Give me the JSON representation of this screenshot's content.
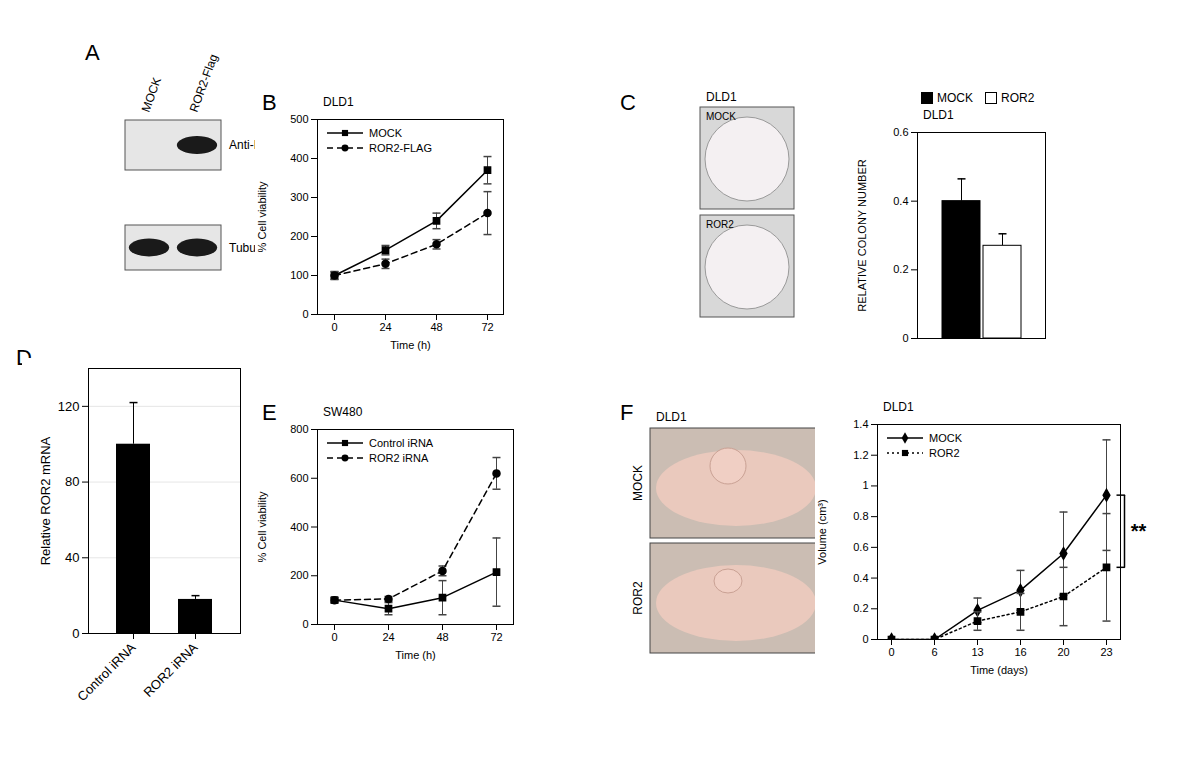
{
  "chart_data": [
    {
      "panel": "B",
      "type": "line",
      "title": "DLD1",
      "xlabel": "Time (h)",
      "ylabel": "% Cell viability",
      "categories": [
        "0",
        "24",
        "48",
        "72"
      ],
      "series": [
        {
          "name": "MOCK",
          "color": "#000000",
          "marker": "square",
          "line_style": "solid",
          "values": [
            100,
            165,
            240,
            370
          ],
          "errors": [
            10,
            12,
            20,
            35
          ]
        },
        {
          "name": "ROR2-FLAG",
          "color": "#000000",
          "marker": "circle",
          "line_style": "dashed",
          "values": [
            100,
            130,
            180,
            260
          ],
          "errors": [
            10,
            12,
            12,
            55
          ]
        }
      ],
      "ylim": [
        0,
        500
      ],
      "yticks": [
        0,
        100,
        200,
        300,
        400,
        500
      ],
      "legend": "top-left"
    },
    {
      "panel": "C",
      "type": "bar",
      "title": "DLD1",
      "ylabel": "RELATIVE COLONY NUMBER",
      "photos": {
        "title": "DLD1",
        "labels": [
          "MOCK",
          "ROR2"
        ]
      },
      "categories": [
        null
      ],
      "series": [
        {
          "name": "MOCK",
          "color": "#000000",
          "values": [
            0.4
          ],
          "errors": [
            0.065
          ]
        },
        {
          "name": "ROR2",
          "color": "#ffffff",
          "values": [
            0.27
          ],
          "errors": [
            0.035
          ]
        }
      ],
      "ylim": [
        0,
        0.6
      ],
      "yticks": [
        0,
        0.2,
        0.4,
        0.6
      ],
      "legend": "top",
      "tick_labels": "y"
    },
    {
      "panel": "D",
      "type": "bar",
      "ylabel": "Relative ROR2 mRNA",
      "categories": [
        "Control iRNA",
        "ROR2 iRNA"
      ],
      "values": [
        100,
        18
      ],
      "errors": [
        22,
        2
      ],
      "color": "#000000",
      "ylim": [
        0,
        140
      ],
      "yticks": [
        0,
        40,
        80,
        120
      ],
      "grid": true
    },
    {
      "panel": "E",
      "type": "line",
      "title": "SW480",
      "xlabel": "Time (h)",
      "ylabel": "% Cell viability",
      "categories": [
        "0",
        "24",
        "48",
        "72"
      ],
      "series": [
        {
          "name": "Control iRNA",
          "color": "#000000",
          "marker": "square",
          "line_style": "solid",
          "values": [
            100,
            65,
            110,
            215
          ],
          "errors": [
            10,
            25,
            70,
            140
          ]
        },
        {
          "name": "ROR2 iRNA",
          "color": "#000000",
          "marker": "circle",
          "line_style": "dashed",
          "values": [
            100,
            105,
            220,
            620
          ],
          "errors": [
            10,
            10,
            20,
            65
          ]
        }
      ],
      "ylim": [
        0,
        800
      ],
      "yticks": [
        0,
        200,
        400,
        600,
        800
      ],
      "legend": "top-left"
    },
    {
      "panel": "F",
      "type": "line",
      "title": "DLD1",
      "xlabel": "Time (days)",
      "ylabel": "Volume (cm³)",
      "photos": {
        "title": "DLD1",
        "labels": [
          "MOCK",
          "ROR2"
        ]
      },
      "categories": [
        "0",
        "6",
        "13",
        "16",
        "20",
        "23"
      ],
      "series": [
        {
          "name": "MOCK",
          "color": "#000000",
          "marker": "diamond",
          "line_style": "solid",
          "values": [
            0,
            0,
            0.19,
            0.32,
            0.56,
            0.94
          ],
          "errors": [
            0,
            0,
            0.08,
            0.13,
            0.27,
            0.36
          ]
        },
        {
          "name": "ROR2",
          "color": "#000000",
          "marker": "square",
          "line_style": "dotted",
          "values": [
            0,
            0,
            0.12,
            0.18,
            0.28,
            0.47
          ],
          "errors": [
            0,
            0,
            0.06,
            0.12,
            0.19,
            0.35
          ]
        }
      ],
      "ylim": [
        0,
        1.4
      ],
      "yticks": [
        0,
        0.2,
        0.4,
        0.6,
        0.8,
        1,
        1.2,
        1.4
      ],
      "legend": "top-left",
      "annotations": [
        {
          "text": "**"
        }
      ]
    }
  ],
  "figure": {
    "panel": "A",
    "blot": {
      "columns": [
        "MOCK",
        "ROR2-Flag"
      ],
      "rows": [
        "Anti-Flag",
        "Tubulin"
      ]
    }
  }
}
